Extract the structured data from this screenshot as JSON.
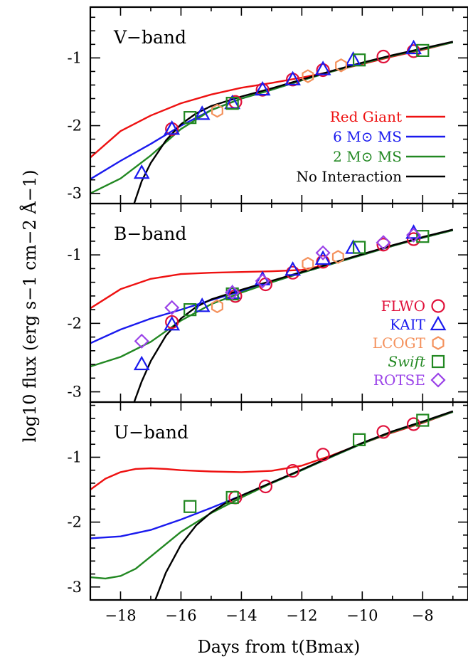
{
  "chart_data": {
    "type": "line",
    "xlabel": "Days from t(Bmax)",
    "ylabel": "log10 flux (erg s−1 cm−2 Å−1)",
    "xlim": [
      -19,
      -6.5
    ],
    "xticks": [
      -18,
      -16,
      -14,
      -12,
      -10,
      -8
    ],
    "xtick_labels": [
      "−18",
      "−16",
      "−14",
      "−12",
      "−10",
      "−8"
    ],
    "grid": false,
    "panels": [
      {
        "name": "V−band",
        "ylim": [
          -3.15,
          -0.25
        ],
        "yticks": [
          -1,
          -2,
          -3
        ],
        "ytick_labels": [
          "-1",
          "-2",
          "-3"
        ],
        "models": [
          {
            "name": "Red Giant",
            "color": "#ee1111",
            "x": [
              -19,
              -18,
              -17,
              -16,
              -15,
              -14,
              -13,
              -12,
              -11,
              -10,
              -9,
              -8,
              -7
            ],
            "y": [
              -2.47,
              -2.08,
              -1.85,
              -1.67,
              -1.54,
              -1.44,
              -1.37,
              -1.29,
              -1.2,
              -1.09,
              -0.98,
              -0.88,
              -0.77
            ]
          },
          {
            "name": "6 M⊙ MS",
            "color": "#1a1aee",
            "x": [
              -19,
              -18,
              -17,
              -16,
              -15,
              -14,
              -13,
              -12,
              -11,
              -10,
              -9,
              -8,
              -7
            ],
            "y": [
              -2.79,
              -2.52,
              -2.27,
              -2.0,
              -1.77,
              -1.6,
              -1.47,
              -1.33,
              -1.2,
              -1.08,
              -0.97,
              -0.87,
              -0.77
            ]
          },
          {
            "name": "2 M⊙ MS",
            "color": "#228822",
            "x": [
              -19,
              -18,
              -17,
              -16,
              -15,
              -14,
              -13,
              -12,
              -11,
              -10,
              -9,
              -8,
              -7
            ],
            "y": [
              -3.0,
              -2.78,
              -2.44,
              -2.05,
              -1.77,
              -1.6,
              -1.47,
              -1.33,
              -1.2,
              -1.08,
              -0.97,
              -0.87,
              -0.77
            ]
          },
          {
            "name": "No Interaction",
            "color": "#000000",
            "x": [
              -17.55,
              -17.3,
              -17.0,
              -16.5,
              -16.0,
              -15.5,
              -15.0,
              -14.0,
              -13.0,
              -12.0,
              -11.0,
              -10.0,
              -9.0,
              -8.0,
              -7.0
            ],
            "y": [
              -3.15,
              -2.82,
              -2.55,
              -2.22,
              -1.98,
              -1.82,
              -1.71,
              -1.57,
              -1.45,
              -1.32,
              -1.19,
              -1.07,
              -0.96,
              -0.86,
              -0.76
            ]
          }
        ],
        "observations": [
          {
            "instrument": "FLWO",
            "x": [
              -16.3,
              -14.2,
              -13.3,
              -12.3,
              -11.3,
              -9.3,
              -8.3
            ],
            "y": [
              -2.05,
              -1.65,
              -1.47,
              -1.32,
              -1.18,
              -0.98,
              -0.9
            ]
          },
          {
            "instrument": "KAIT",
            "x": [
              -17.3,
              -16.3,
              -15.3,
              -14.3,
              -13.3,
              -12.3,
              -11.3,
              -10.3,
              -8.3
            ],
            "y": [
              -2.7,
              -2.05,
              -1.83,
              -1.67,
              -1.47,
              -1.32,
              -1.17,
              -1.03,
              -0.86
            ]
          },
          {
            "instrument": "LCOGT",
            "x": [
              -14.8,
              -11.8,
              -10.7
            ],
            "y": [
              -1.78,
              -1.27,
              -1.11
            ]
          },
          {
            "instrument": "Swift",
            "x": [
              -15.7,
              -14.3,
              -10.1,
              -8.0
            ],
            "y": [
              -1.88,
              -1.67,
              -1.03,
              -0.89
            ]
          }
        ]
      },
      {
        "name": "B−band",
        "ylim": [
          -3.15,
          -0.25
        ],
        "yticks": [
          -1,
          -2,
          -3
        ],
        "ytick_labels": [
          "-1",
          "-2",
          "-3"
        ],
        "models": [
          {
            "name": "Red Giant",
            "color": "#ee1111",
            "x": [
              -19,
              -18,
              -17,
              -16,
              -15,
              -14,
              -13,
              -12,
              -11,
              -10,
              -9,
              -8,
              -7
            ],
            "y": [
              -1.78,
              -1.5,
              -1.35,
              -1.28,
              -1.26,
              -1.25,
              -1.24,
              -1.22,
              -1.13,
              -1.0,
              -0.87,
              -0.75,
              -0.64
            ]
          },
          {
            "name": "6 M⊙ MS",
            "color": "#1a1aee",
            "x": [
              -19,
              -18,
              -17,
              -16,
              -15,
              -14,
              -13,
              -12,
              -11,
              -10,
              -9,
              -8,
              -7
            ],
            "y": [
              -2.29,
              -2.09,
              -1.93,
              -1.8,
              -1.66,
              -1.53,
              -1.4,
              -1.26,
              -1.13,
              -1.0,
              -0.87,
              -0.75,
              -0.64
            ]
          },
          {
            "name": "2 M⊙ MS",
            "color": "#228822",
            "x": [
              -19,
              -18,
              -17,
              -16,
              -15,
              -14,
              -13,
              -12,
              -11,
              -10,
              -9,
              -8,
              -7
            ],
            "y": [
              -2.63,
              -2.49,
              -2.27,
              -1.96,
              -1.72,
              -1.55,
              -1.4,
              -1.26,
              -1.13,
              -1.0,
              -0.87,
              -0.75,
              -0.64
            ]
          },
          {
            "name": "No Interaction",
            "color": "#000000",
            "x": [
              -17.55,
              -17.3,
              -17.0,
              -16.5,
              -16.0,
              -15.5,
              -15.0,
              -14.0,
              -13.0,
              -12.0,
              -11.0,
              -10.0,
              -9.0,
              -8.0,
              -7.0
            ],
            "y": [
              -3.15,
              -2.85,
              -2.55,
              -2.18,
              -1.93,
              -1.76,
              -1.65,
              -1.51,
              -1.38,
              -1.25,
              -1.12,
              -0.99,
              -0.86,
              -0.74,
              -0.63
            ]
          }
        ],
        "observations": [
          {
            "instrument": "FLWO",
            "x": [
              -16.3,
              -14.2,
              -13.2,
              -12.3,
              -11.3,
              -9.3,
              -8.3
            ],
            "y": [
              -1.98,
              -1.6,
              -1.43,
              -1.26,
              -1.1,
              -0.85,
              -0.77
            ]
          },
          {
            "instrument": "KAIT",
            "x": [
              -17.3,
              -16.3,
              -15.3,
              -14.3,
              -13.3,
              -12.3,
              -11.3,
              -10.3,
              -8.3
            ],
            "y": [
              -2.6,
              -2.02,
              -1.75,
              -1.56,
              -1.36,
              -1.22,
              -1.06,
              -0.9,
              -0.68
            ]
          },
          {
            "instrument": "LCOGT",
            "x": [
              -14.8,
              -11.8,
              -10.8
            ],
            "y": [
              -1.75,
              -1.13,
              -1.03
            ]
          },
          {
            "instrument": "Swift",
            "x": [
              -15.7,
              -14.3,
              -10.1,
              -8.0
            ],
            "y": [
              -1.8,
              -1.57,
              -0.89,
              -0.73
            ]
          },
          {
            "instrument": "ROTSE",
            "x": [
              -17.3,
              -16.3,
              -14.3,
              -13.3,
              -11.3,
              -9.3,
              -8.3
            ],
            "y": [
              -2.26,
              -1.77,
              -1.55,
              -1.38,
              -0.97,
              -0.82,
              -0.71
            ]
          }
        ]
      },
      {
        "name": "U−band",
        "ylim": [
          -3.2,
          -0.15
        ],
        "yticks": [
          -1,
          -2,
          -3
        ],
        "ytick_labels": [
          "-1",
          "-2",
          "-3"
        ],
        "models": [
          {
            "name": "Red Giant",
            "color": "#ee1111",
            "x": [
              -19,
              -18.5,
              -18,
              -17.5,
              -17,
              -16.5,
              -16,
              -15,
              -14,
              -13,
              -12,
              -11,
              -10,
              -9,
              -8,
              -7
            ],
            "y": [
              -1.5,
              -1.33,
              -1.23,
              -1.18,
              -1.17,
              -1.18,
              -1.2,
              -1.22,
              -1.23,
              -1.21,
              -1.13,
              -0.97,
              -0.79,
              -0.62,
              -0.47,
              -0.3
            ]
          },
          {
            "name": "6 M⊙ MS",
            "color": "#1a1aee",
            "x": [
              -19,
              -18,
              -17,
              -16,
              -15,
              -14,
              -13,
              -12,
              -11,
              -10,
              -9,
              -8,
              -7
            ],
            "y": [
              -2.25,
              -2.22,
              -2.12,
              -1.96,
              -1.78,
              -1.59,
              -1.4,
              -1.2,
              -0.99,
              -0.79,
              -0.61,
              -0.46,
              -0.3
            ]
          },
          {
            "name": "2 M⊙ MS",
            "color": "#228822",
            "x": [
              -19,
              -18.5,
              -18,
              -17.5,
              -17,
              -16,
              -15,
              -14,
              -13,
              -12,
              -11,
              -10,
              -9,
              -8,
              -7
            ],
            "y": [
              -2.85,
              -2.87,
              -2.83,
              -2.72,
              -2.53,
              -2.15,
              -1.86,
              -1.62,
              -1.4,
              -1.2,
              -0.99,
              -0.79,
              -0.61,
              -0.46,
              -0.3
            ]
          },
          {
            "name": "No Interaction",
            "color": "#000000",
            "x": [
              -16.85,
              -16.5,
              -16,
              -15.5,
              -15,
              -14.5,
              -14,
              -13,
              -12,
              -11,
              -10,
              -9,
              -8,
              -7
            ],
            "y": [
              -3.2,
              -2.78,
              -2.35,
              -2.05,
              -1.85,
              -1.7,
              -1.59,
              -1.39,
              -1.19,
              -0.98,
              -0.78,
              -0.6,
              -0.45,
              -0.29
            ]
          }
        ],
        "observations": [
          {
            "instrument": "FLWO",
            "x": [
              -14.2,
              -13.2,
              -12.3,
              -11.3,
              -9.3,
              -8.3
            ],
            "y": [
              -1.62,
              -1.45,
              -1.21,
              -0.96,
              -0.61,
              -0.49
            ]
          },
          {
            "instrument": "Swift",
            "x": [
              -15.7,
              -14.3,
              -10.1,
              -8.0
            ],
            "y": [
              -1.76,
              -1.62,
              -0.73,
              -0.43
            ]
          }
        ]
      }
    ],
    "model_legend": [
      "Red Giant",
      "6 M⊙ MS",
      "2 M⊙ MS",
      "No Interaction"
    ],
    "instrument_legend": [
      {
        "name": "FLWO",
        "marker": "circle",
        "color": "#e0103a"
      },
      {
        "name": "KAIT",
        "marker": "triangle",
        "color": "#1a1aee"
      },
      {
        "name": "LCOGT",
        "marker": "hexagon",
        "color": "#f4915c"
      },
      {
        "name": "Swift",
        "marker": "square",
        "color": "#228822"
      },
      {
        "name": "ROTSE",
        "marker": "diamond",
        "color": "#9a42e8"
      }
    ]
  }
}
